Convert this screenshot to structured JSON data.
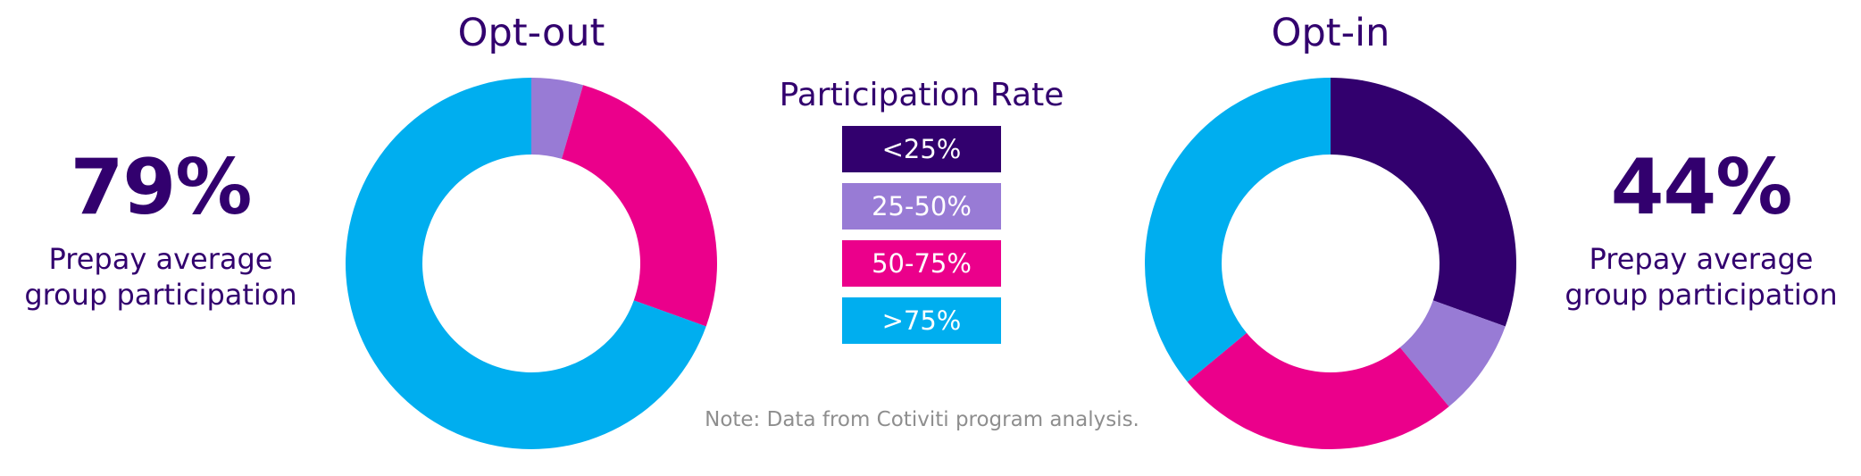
{
  "colors": {
    "text_primary": "#32006E",
    "note_text": "#8E8E8E",
    "lt25": "#32006E",
    "25to50": "#987BD5",
    "50to75": "#EB008B",
    "gt75": "#00AEEF"
  },
  "legend": {
    "title": "Participation Rate",
    "items": [
      {
        "label": "<25%",
        "color_key": "lt25"
      },
      {
        "label": "25-50%",
        "color_key": "25to50"
      },
      {
        "label": "50-75%",
        "color_key": "50to75"
      },
      {
        "label": ">75%",
        "color_key": "gt75"
      }
    ]
  },
  "stats": {
    "left": {
      "value": "79%",
      "label_line1": "Prepay average",
      "label_line2": "group participation"
    },
    "right": {
      "value": "44%",
      "label_line1": "Prepay average",
      "label_line2": "group participation"
    }
  },
  "note": "Note: Data from Cotiviti program analysis.",
  "chart_data": [
    {
      "type": "pie",
      "donut": true,
      "title": "Opt-out",
      "categories": [
        "<25%",
        "25-50%",
        "50-75%",
        ">75%"
      ],
      "values": [
        0,
        4.5,
        26,
        69.5
      ],
      "start": "top",
      "direction": "clockwise"
    },
    {
      "type": "pie",
      "donut": true,
      "title": "Opt-in",
      "categories": [
        "<25%",
        "25-50%",
        "50-75%",
        ">75%"
      ],
      "values": [
        30.5,
        8.5,
        25,
        36
      ],
      "start": "top",
      "direction": "clockwise"
    }
  ]
}
